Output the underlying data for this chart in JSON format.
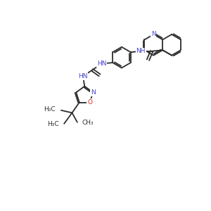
{
  "bg_color": "#ffffff",
  "bond_color": "#2d2d2d",
  "N_color": "#4444cc",
  "O_color": "#cc2222",
  "lw": 1.3,
  "fs": 6.5,
  "xlim": [
    0,
    10
  ],
  "ylim": [
    0,
    10
  ]
}
